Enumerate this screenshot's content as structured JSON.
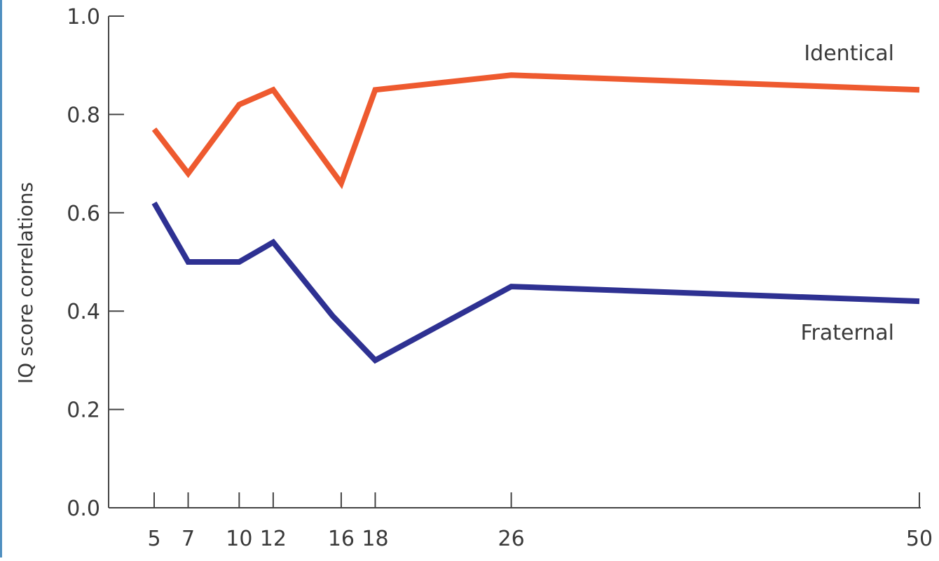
{
  "chart_data": {
    "type": "line",
    "title": "",
    "xlabel": "",
    "ylabel": "IQ score correlations",
    "x": [
      5,
      7,
      10,
      12,
      16,
      18,
      26,
      50
    ],
    "x_ticks": [
      "5",
      "7",
      "10",
      "12",
      "16",
      "18",
      "26",
      "50"
    ],
    "y_ticks": [
      "0.0",
      "0.2",
      "0.4",
      "0.6",
      "0.8",
      "1.0"
    ],
    "ylim": [
      0,
      1
    ],
    "grid": false,
    "series": [
      {
        "name": "Identical",
        "color": "#ee5a2f",
        "x": [
          5,
          7,
          10,
          12,
          16,
          18,
          26,
          50
        ],
        "values": [
          0.77,
          0.68,
          0.82,
          0.85,
          0.66,
          0.85,
          0.88,
          0.85
        ]
      },
      {
        "name": "Fraternal",
        "color": "#2e3192",
        "x": [
          5,
          7,
          10,
          12,
          15.5,
          18,
          26,
          50
        ],
        "values": [
          0.62,
          0.5,
          0.5,
          0.54,
          0.39,
          0.3,
          0.45,
          0.42
        ]
      }
    ]
  }
}
